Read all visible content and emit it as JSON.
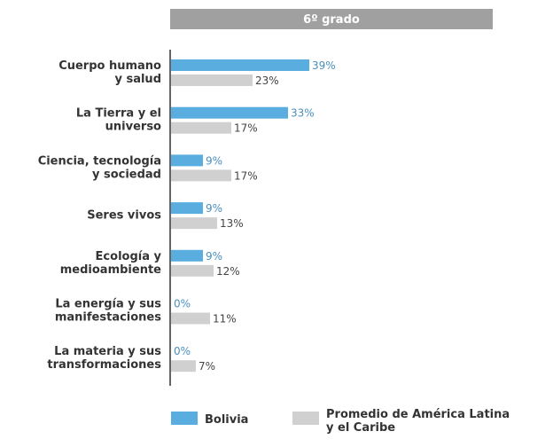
{
  "chart_data": {
    "type": "bar",
    "orientation": "horizontal",
    "title": "6º grado",
    "categories": [
      [
        "Cuerpo humano",
        "y salud"
      ],
      [
        "La Tierra y el",
        "universo"
      ],
      [
        "Ciencia, tecnología",
        "y sociedad"
      ],
      [
        "Seres vivos"
      ],
      [
        "Ecología y",
        "medioambiente"
      ],
      [
        "La energía y sus",
        "manifestaciones"
      ],
      [
        "La materia y sus",
        "transformaciones"
      ]
    ],
    "series": [
      {
        "name": "Bolivia",
        "color": "#5aaedf",
        "label_color": "#4a8fbf",
        "values": [
          39,
          33,
          9,
          9,
          9,
          0,
          0
        ],
        "labels": [
          "39%",
          "33%",
          "9%",
          "9%",
          "9%",
          "0%",
          "0%"
        ]
      },
      {
        "name": [
          "Promedio de América Latina",
          "y el Caribe"
        ],
        "color": "#d0d0d0",
        "label_color": "#444444",
        "values": [
          23,
          17,
          17,
          13,
          12,
          11,
          7
        ],
        "labels": [
          "23%",
          "17%",
          "17%",
          "13%",
          "12%",
          "11%",
          "7%"
        ]
      }
    ],
    "xlim": [
      0,
      100
    ],
    "grid": false,
    "legend_position": "bottom",
    "header_color": "#a0a0a0"
  }
}
